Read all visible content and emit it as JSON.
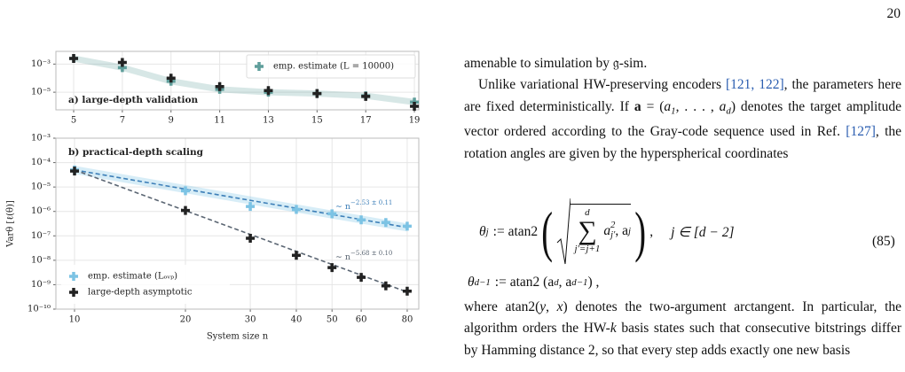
{
  "page_number": "20",
  "chart_data": [
    {
      "type": "scatter",
      "title": "a) large-depth validation",
      "x": [
        5,
        7,
        9,
        11,
        13,
        15,
        17,
        19
      ],
      "series": [
        {
          "name": "emp. estimate (L = 10000)",
          "color": "#5f9e9b",
          "band": true,
          "values": [
            0.0025,
            0.00056,
            6e-05,
            1.6e-05,
            1e-05,
            8e-06,
            5.6e-06,
            2e-06
          ]
        },
        {
          "color": "#222222",
          "values": [
            0.0025,
            0.0013,
            0.0001,
            2.5e-05,
            1.3e-05,
            8e-06,
            5e-06,
            1e-06
          ]
        }
      ],
      "xlim": [
        4.27,
        19.18
      ],
      "xticks": [
        5,
        7,
        9,
        11,
        13,
        15,
        17,
        19
      ],
      "ylog": true,
      "ylim": [
        5.6e-07,
        0.008
      ],
      "yticks": [
        {
          "value": 0.001,
          "label": "10⁻³"
        },
        {
          "value": 1e-05,
          "label": "10⁻⁵"
        }
      ],
      "grid": true,
      "legend": "upper right"
    },
    {
      "type": "scatter",
      "title": "b) practical-depth scaling",
      "xlabel": "System size n",
      "ylabel": "Varθ [ℓ(θ)]",
      "x": [
        10,
        20,
        30,
        40,
        50,
        60,
        70,
        80
      ],
      "series": [
        {
          "name": "emp. estimate (Lₒᵥₚ)",
          "color": "#7cc3e4",
          "values": [
            5e-05,
            7e-06,
            1.6e-06,
            1.2e-06,
            8e-07,
            4.5e-07,
            3.5e-07,
            2.5e-07
          ]
        },
        {
          "name": "large-depth asymptotic",
          "color": "#222222",
          "values": [
            4.5e-05,
            1.1e-06,
            8e-08,
            1.6e-08,
            5e-09,
            2e-09,
            9e-10,
            5.4e-10
          ]
        }
      ],
      "fits": [
        {
          "color": "#3d7fb8",
          "band": true,
          "x": [
            10,
            80
          ],
          "values": [
            5e-05,
            2.2e-07
          ],
          "label": "∼ n",
          "exponent": "−2.53 ± 0.11"
        },
        {
          "color": "#5b6673",
          "x": [
            10,
            80
          ],
          "values": [
            5e-05,
            5e-10
          ],
          "label": "∼ n",
          "exponent": "−5.68 ± 0.10"
        }
      ],
      "xlog": true,
      "xlim": [
        8.9,
        86
      ],
      "xticks": [
        10,
        20,
        30,
        40,
        50,
        60,
        80
      ],
      "ylog": true,
      "ylim": [
        1e-10,
        0.001
      ],
      "yticks": [
        {
          "value": 0.001,
          "label": "10⁻³"
        },
        {
          "value": 0.0001,
          "label": "10⁻⁴"
        },
        {
          "value": 1e-05,
          "label": "10⁻⁵"
        },
        {
          "value": 1e-06,
          "label": "10⁻⁶"
        },
        {
          "value": 1e-07,
          "label": "10⁻⁷"
        },
        {
          "value": 1e-08,
          "label": "10⁻⁸"
        },
        {
          "value": 1e-09,
          "label": "10⁻⁹"
        },
        {
          "value": 1e-10,
          "label": "10⁻¹⁰"
        }
      ],
      "grid": true,
      "legend": "lower left"
    }
  ],
  "text": {
    "paragraphs": [
      [
        "amenable to simulation by 𝔤-sim."
      ],
      [
        "Unlike variational HW-preserving encoders ",
        {
          "t": "[121, 122]",
          "s": "cite"
        },
        ", the parameters here are fixed deterministically. If ",
        {
          "t": "a",
          "s": "b"
        },
        " = (",
        {
          "t": "a",
          "s": "i"
        },
        {
          "t": "1",
          "s": "sub"
        },
        ", . . . , ",
        {
          "t": "a",
          "s": "i"
        },
        {
          "t": "d",
          "s": "sub"
        },
        ") denotes the target amplitude vector ordered according to the Gray-code sequence used in Ref. ",
        {
          "t": "[127]",
          "s": "cite"
        },
        ", the rotation angles are given by the hyperspherical coordinates"
      ],
      [
        "where atan2(",
        {
          "t": "y",
          "s": "i"
        },
        ", ",
        {
          "t": "x",
          "s": "i"
        },
        ") denotes the two-argument arctangent. In particular, the algorithm orders the HW-",
        {
          "t": "k",
          "s": "i"
        },
        " basis states such that consecutive bitstrings differ by Hamming distance 2, so that every step adds exactly one new basis"
      ]
    ]
  },
  "equation": {
    "number": "(85)",
    "l1": [
      "θ",
      "j",
      ":= atan2",
      "d",
      "∑",
      "j′=j+1",
      "a",
      "2",
      "j′",
      ", a",
      "j",
      ",",
      "j ∈ [d − 2]"
    ],
    "l2": [
      "θ",
      "d−1",
      ":= atan2 (a",
      "d",
      ", a",
      "d−1",
      ") ,"
    ]
  }
}
